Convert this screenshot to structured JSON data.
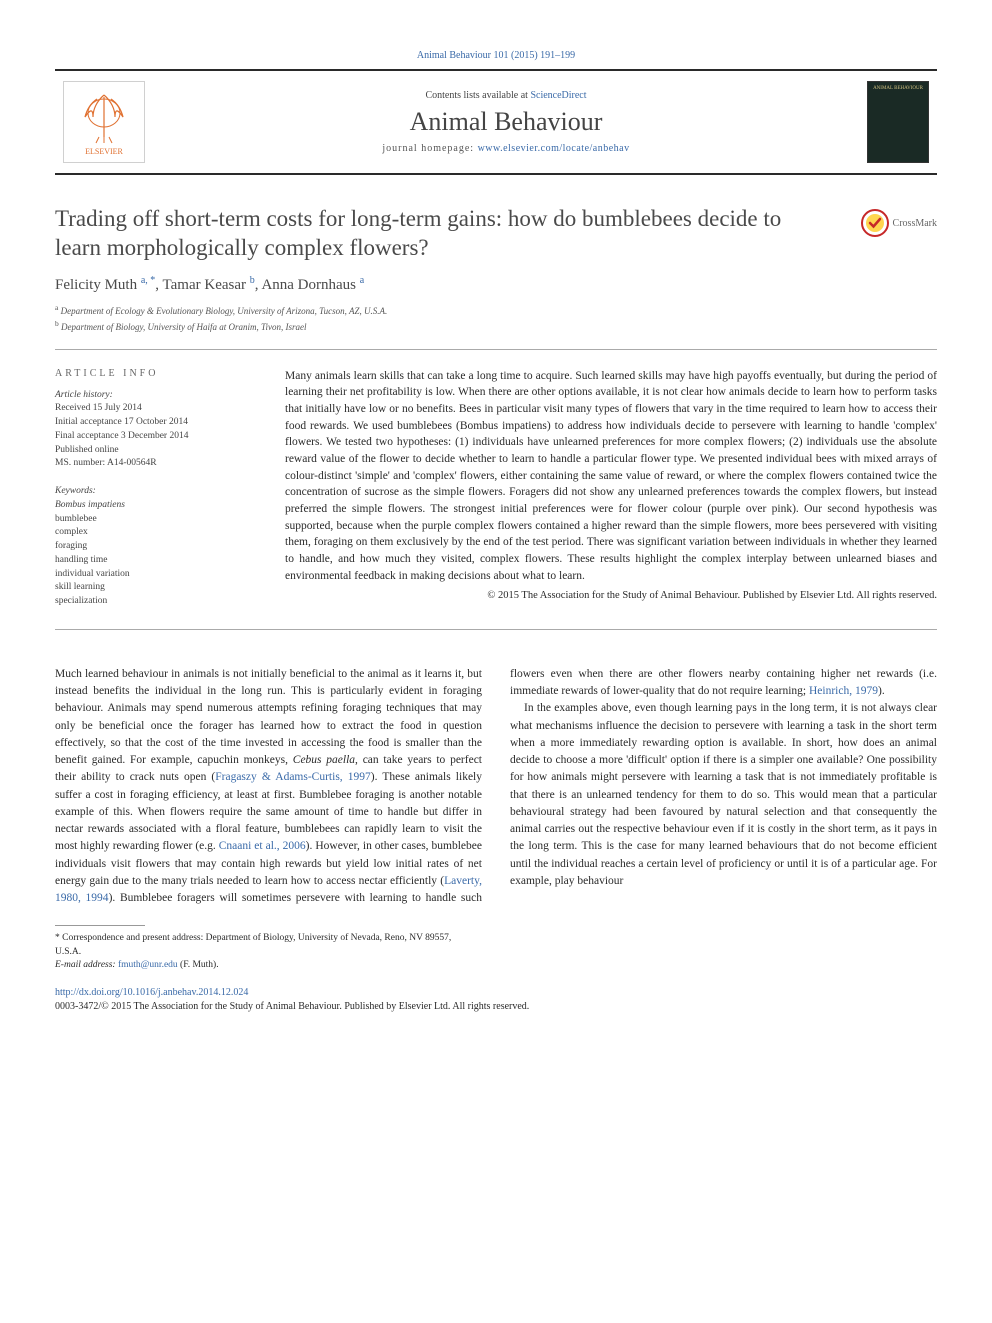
{
  "top_ref": {
    "journal_link_text": "Animal Behaviour 101 (2015) 191–199",
    "journal_link_color": "#3a6aa8"
  },
  "masthead": {
    "publisher_name": "ELSEVIER",
    "contents_prefix": "Contents lists available at ",
    "contents_link": "ScienceDirect",
    "journal_name": "Animal Behaviour",
    "homepage_label": "journal homepage: ",
    "homepage_url": "www.elsevier.com/locate/anbehav",
    "cover_text": "ANIMAL BEHAVIOUR",
    "cover_bg": "#1a2a25",
    "cover_text_color": "#d0c080"
  },
  "crossmark": {
    "label": "CrossMark"
  },
  "title": "Trading off short-term costs for long-term gains: how do bumblebees decide to learn morphologically complex flowers?",
  "authors_html": "Felicity Muth <sup>a, *</sup>, Tamar Keasar <sup>b</sup>, Anna Dornhaus <sup>a</sup>",
  "affiliations": {
    "a": "Department of Ecology & Evolutionary Biology, University of Arizona, Tucson, AZ, U.S.A.",
    "b": "Department of Biology, University of Haifa at Oranim, Tivon, Israel"
  },
  "article_info": {
    "heading": "article info",
    "history_head": "Article history:",
    "received": "Received 15 July 2014",
    "initial_acceptance": "Initial acceptance 17 October 2014",
    "final_acceptance": "Final acceptance 3 December 2014",
    "published": "Published online",
    "ms_number": "MS. number: A14-00564R",
    "keywords_head": "Keywords:",
    "keywords": [
      {
        "text": "Bombus impatiens",
        "italic": true
      },
      {
        "text": "bumblebee",
        "italic": false
      },
      {
        "text": "complex",
        "italic": false
      },
      {
        "text": "foraging",
        "italic": false
      },
      {
        "text": "handling time",
        "italic": false
      },
      {
        "text": "individual variation",
        "italic": false
      },
      {
        "text": "skill learning",
        "italic": false
      },
      {
        "text": "specialization",
        "italic": false
      }
    ]
  },
  "abstract": {
    "text": "Many animals learn skills that can take a long time to acquire. Such learned skills may have high payoffs eventually, but during the period of learning their net profitability is low. When there are other options available, it is not clear how animals decide to learn how to perform tasks that initially have low or no benefits. Bees in particular visit many types of flowers that vary in the time required to learn how to access their food rewards. We used bumblebees (Bombus impatiens) to address how individuals decide to persevere with learning to handle 'complex' flowers. We tested two hypotheses: (1) individuals have unlearned preferences for more complex flowers; (2) individuals use the absolute reward value of the flower to decide whether to learn to handle a particular flower type. We presented individual bees with mixed arrays of colour-distinct 'simple' and 'complex' flowers, either containing the same value of reward, or where the complex flowers contained twice the concentration of sucrose as the simple flowers. Foragers did not show any unlearned preferences towards the complex flowers, but instead preferred the simple flowers. The strongest initial preferences were for flower colour (purple over pink). Our second hypothesis was supported, because when the purple complex flowers contained a higher reward than the simple flowers, more bees persevered with visiting them, foraging on them exclusively by the end of the test period. There was significant variation between individuals in whether they learned to handle, and how much they visited, complex flowers. These results highlight the complex interplay between unlearned biases and environmental feedback in making decisions about what to learn.",
    "copyright": "© 2015 The Association for the Study of Animal Behaviour. Published by Elsevier Ltd. All rights reserved."
  },
  "body": {
    "p1_pre": "Much learned behaviour in animals is not initially beneficial to the animal as it learns it, but instead benefits the individual in the long run. This is particularly evident in foraging behaviour. Animals may spend numerous attempts refining foraging techniques that may only be beneficial once the forager has learned how to extract the food in question effectively, so that the cost of the time invested in accessing the food is smaller than the benefit gained. For example, capuchin monkeys, ",
    "p1_species": "Cebus paella",
    "p1_mid1": ", can take years to perfect their ability to crack nuts open (",
    "p1_cite1": "Fragaszy & Adams-Curtis, 1997",
    "p1_mid2": "). These animals likely suffer a cost in foraging efficiency, at least at first. Bumblebee foraging is another notable example of this. When flowers require the same amount of time to handle but differ in nectar rewards associated with a floral feature, bumblebees can rapidly learn to visit the most highly rewarding flower (e.g. ",
    "p1_cite2": "Cnaani et al., 2006",
    "p1_mid3": "). However, in other cases, bumblebee individuals visit flowers that may contain high rewards but yield low initial rates of net energy gain due to the many trials needed to learn how to access nectar efficiently (",
    "p1_cite3": "Laverty, 1980, 1994",
    "p1_mid4": "). Bumblebee foragers will sometimes persevere with learning to handle such flowers even when there are other flowers nearby containing higher net rewards (i.e. immediate rewards of lower-quality that do not require learning; ",
    "p1_cite4": "Heinrich, 1979",
    "p1_end": ").",
    "p2": "In the examples above, even though learning pays in the long term, it is not always clear what mechanisms influence the decision to persevere with learning a task in the short term when a more immediately rewarding option is available. In short, how does an animal decide to choose a more 'difficult' option if there is a simpler one available? One possibility for how animals might persevere with learning a task that is not immediately profitable is that there is an unlearned tendency for them to do so. This would mean that a particular behavioural strategy had been favoured by natural selection and that consequently the animal carries out the respective behaviour even if it is costly in the short term, as it pays in the long term. This is the case for many learned behaviours that do not become efficient until the individual reaches a certain level of proficiency or until it is of a particular age. For example, play behaviour"
  },
  "footnotes": {
    "corr_prefix": "* Correspondence and present address: Department of Biology, University of Nevada, Reno, NV 89557, U.S.A.",
    "email_label": "E-mail address: ",
    "email": "fmuth@unr.edu",
    "email_person": " (F. Muth)."
  },
  "doi": {
    "url": "http://dx.doi.org/10.1016/j.anbehav.2014.12.024",
    "issn_line": "0003-3472/© 2015 The Association for the Study of Animal Behaviour. Published by Elsevier Ltd. All rights reserved."
  },
  "colors": {
    "link": "#3a6aa8",
    "text": "#2a2a2a",
    "heading": "#4a4a4a",
    "rule": "#aaaaaa"
  }
}
